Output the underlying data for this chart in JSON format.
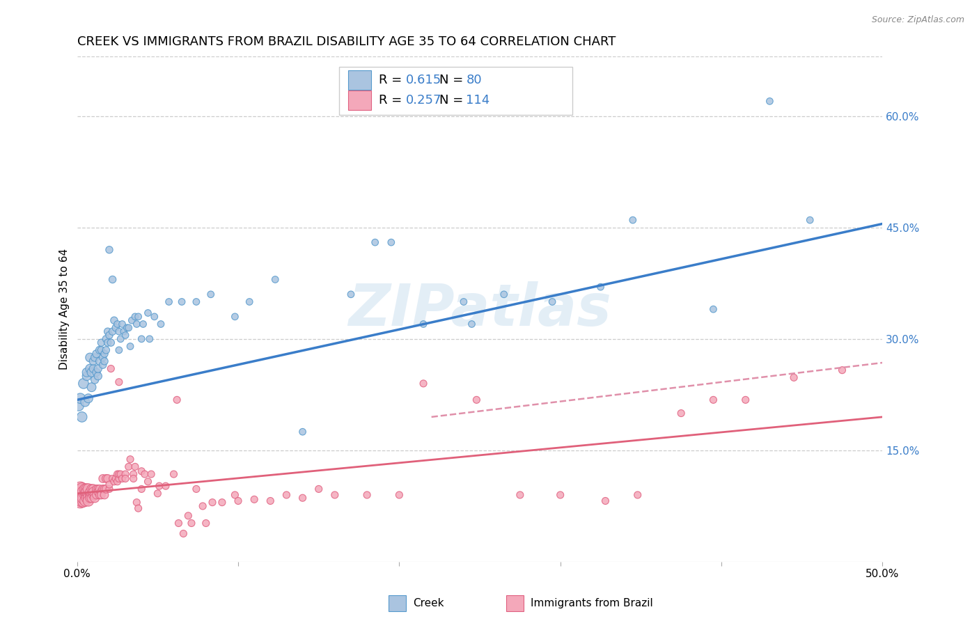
{
  "title": "CREEK VS IMMIGRANTS FROM BRAZIL DISABILITY AGE 35 TO 64 CORRELATION CHART",
  "source": "Source: ZipAtlas.com",
  "ylabel": "Disability Age 35 to 64",
  "xlim": [
    0.0,
    0.5
  ],
  "ylim": [
    0.0,
    0.68
  ],
  "xtick_labels": [
    "0.0%",
    "50.0%"
  ],
  "xtick_values": [
    0.0,
    0.5
  ],
  "ytick_labels": [
    "15.0%",
    "30.0%",
    "45.0%",
    "60.0%"
  ],
  "ytick_values": [
    0.15,
    0.3,
    0.45,
    0.6
  ],
  "legend_r1_val": "0.615",
  "legend_n1_val": "80",
  "legend_r2_val": "0.257",
  "legend_n2_val": "114",
  "creek_color": "#aac4e0",
  "brazil_color": "#f4a8ba",
  "creek_edge_color": "#5599cc",
  "brazil_edge_color": "#e06080",
  "creek_line_color": "#3a7dc9",
  "brazil_line_color": "#e0607a",
  "brazil_dashed_color": "#e090aa",
  "accent_color": "#3a7dc9",
  "watermark": "ZIPatlas",
  "watermark_color": "#cce0f0",
  "creek_scatter": [
    [
      0.001,
      0.21
    ],
    [
      0.002,
      0.22
    ],
    [
      0.003,
      0.195
    ],
    [
      0.004,
      0.24
    ],
    [
      0.005,
      0.215
    ],
    [
      0.006,
      0.25
    ],
    [
      0.006,
      0.255
    ],
    [
      0.007,
      0.22
    ],
    [
      0.008,
      0.275
    ],
    [
      0.008,
      0.26
    ],
    [
      0.009,
      0.235
    ],
    [
      0.009,
      0.255
    ],
    [
      0.01,
      0.27
    ],
    [
      0.01,
      0.26
    ],
    [
      0.011,
      0.245
    ],
    [
      0.011,
      0.275
    ],
    [
      0.012,
      0.28
    ],
    [
      0.012,
      0.255
    ],
    [
      0.013,
      0.25
    ],
    [
      0.013,
      0.26
    ],
    [
      0.014,
      0.27
    ],
    [
      0.014,
      0.285
    ],
    [
      0.015,
      0.295
    ],
    [
      0.015,
      0.285
    ],
    [
      0.016,
      0.275
    ],
    [
      0.016,
      0.265
    ],
    [
      0.017,
      0.28
    ],
    [
      0.017,
      0.27
    ],
    [
      0.018,
      0.3
    ],
    [
      0.018,
      0.285
    ],
    [
      0.019,
      0.295
    ],
    [
      0.019,
      0.31
    ],
    [
      0.02,
      0.305
    ],
    [
      0.02,
      0.42
    ],
    [
      0.021,
      0.295
    ],
    [
      0.022,
      0.38
    ],
    [
      0.022,
      0.31
    ],
    [
      0.023,
      0.325
    ],
    [
      0.024,
      0.315
    ],
    [
      0.025,
      0.32
    ],
    [
      0.026,
      0.31
    ],
    [
      0.026,
      0.285
    ],
    [
      0.027,
      0.3
    ],
    [
      0.028,
      0.32
    ],
    [
      0.029,
      0.31
    ],
    [
      0.03,
      0.305
    ],
    [
      0.031,
      0.315
    ],
    [
      0.032,
      0.315
    ],
    [
      0.033,
      0.29
    ],
    [
      0.034,
      0.325
    ],
    [
      0.036,
      0.33
    ],
    [
      0.037,
      0.32
    ],
    [
      0.038,
      0.33
    ],
    [
      0.04,
      0.3
    ],
    [
      0.041,
      0.32
    ],
    [
      0.044,
      0.335
    ],
    [
      0.045,
      0.3
    ],
    [
      0.048,
      0.33
    ],
    [
      0.052,
      0.32
    ],
    [
      0.057,
      0.35
    ],
    [
      0.065,
      0.35
    ],
    [
      0.074,
      0.35
    ],
    [
      0.083,
      0.36
    ],
    [
      0.098,
      0.33
    ],
    [
      0.107,
      0.35
    ],
    [
      0.123,
      0.38
    ],
    [
      0.14,
      0.175
    ],
    [
      0.17,
      0.36
    ],
    [
      0.185,
      0.43
    ],
    [
      0.195,
      0.43
    ],
    [
      0.215,
      0.32
    ],
    [
      0.24,
      0.35
    ],
    [
      0.245,
      0.32
    ],
    [
      0.265,
      0.36
    ],
    [
      0.295,
      0.35
    ],
    [
      0.325,
      0.37
    ],
    [
      0.345,
      0.46
    ],
    [
      0.395,
      0.34
    ],
    [
      0.43,
      0.62
    ],
    [
      0.455,
      0.46
    ]
  ],
  "brazil_scatter": [
    [
      0.001,
      0.085
    ],
    [
      0.001,
      0.09
    ],
    [
      0.001,
      0.088
    ],
    [
      0.002,
      0.092
    ],
    [
      0.002,
      0.082
    ],
    [
      0.002,
      0.098
    ],
    [
      0.002,
      0.094
    ],
    [
      0.003,
      0.09
    ],
    [
      0.003,
      0.086
    ],
    [
      0.003,
      0.098
    ],
    [
      0.003,
      0.082
    ],
    [
      0.004,
      0.09
    ],
    [
      0.004,
      0.094
    ],
    [
      0.004,
      0.082
    ],
    [
      0.004,
      0.086
    ],
    [
      0.005,
      0.09
    ],
    [
      0.005,
      0.094
    ],
    [
      0.005,
      0.082
    ],
    [
      0.005,
      0.098
    ],
    [
      0.006,
      0.09
    ],
    [
      0.006,
      0.086
    ],
    [
      0.006,
      0.098
    ],
    [
      0.006,
      0.094
    ],
    [
      0.007,
      0.09
    ],
    [
      0.007,
      0.086
    ],
    [
      0.007,
      0.098
    ],
    [
      0.007,
      0.082
    ],
    [
      0.008,
      0.09
    ],
    [
      0.008,
      0.094
    ],
    [
      0.008,
      0.086
    ],
    [
      0.009,
      0.09
    ],
    [
      0.009,
      0.098
    ],
    [
      0.009,
      0.086
    ],
    [
      0.01,
      0.09
    ],
    [
      0.01,
      0.098
    ],
    [
      0.01,
      0.094
    ],
    [
      0.011,
      0.09
    ],
    [
      0.011,
      0.086
    ],
    [
      0.012,
      0.098
    ],
    [
      0.012,
      0.09
    ],
    [
      0.013,
      0.098
    ],
    [
      0.013,
      0.094
    ],
    [
      0.014,
      0.09
    ],
    [
      0.014,
      0.098
    ],
    [
      0.015,
      0.094
    ],
    [
      0.015,
      0.09
    ],
    [
      0.016,
      0.098
    ],
    [
      0.016,
      0.112
    ],
    [
      0.017,
      0.098
    ],
    [
      0.017,
      0.09
    ],
    [
      0.018,
      0.112
    ],
    [
      0.018,
      0.098
    ],
    [
      0.019,
      0.112
    ],
    [
      0.02,
      0.098
    ],
    [
      0.02,
      0.104
    ],
    [
      0.021,
      0.26
    ],
    [
      0.022,
      0.112
    ],
    [
      0.023,
      0.108
    ],
    [
      0.024,
      0.112
    ],
    [
      0.025,
      0.108
    ],
    [
      0.025,
      0.118
    ],
    [
      0.026,
      0.112
    ],
    [
      0.026,
      0.118
    ],
    [
      0.026,
      0.242
    ],
    [
      0.027,
      0.118
    ],
    [
      0.028,
      0.112
    ],
    [
      0.03,
      0.118
    ],
    [
      0.03,
      0.112
    ],
    [
      0.032,
      0.128
    ],
    [
      0.033,
      0.138
    ],
    [
      0.035,
      0.118
    ],
    [
      0.035,
      0.112
    ],
    [
      0.036,
      0.128
    ],
    [
      0.037,
      0.08
    ],
    [
      0.038,
      0.072
    ],
    [
      0.04,
      0.122
    ],
    [
      0.04,
      0.098
    ],
    [
      0.042,
      0.118
    ],
    [
      0.044,
      0.108
    ],
    [
      0.046,
      0.118
    ],
    [
      0.05,
      0.092
    ],
    [
      0.051,
      0.102
    ],
    [
      0.055,
      0.102
    ],
    [
      0.06,
      0.118
    ],
    [
      0.062,
      0.218
    ],
    [
      0.063,
      0.052
    ],
    [
      0.066,
      0.038
    ],
    [
      0.069,
      0.062
    ],
    [
      0.071,
      0.052
    ],
    [
      0.074,
      0.098
    ],
    [
      0.078,
      0.075
    ],
    [
      0.08,
      0.052
    ],
    [
      0.084,
      0.08
    ],
    [
      0.09,
      0.08
    ],
    [
      0.098,
      0.09
    ],
    [
      0.1,
      0.082
    ],
    [
      0.11,
      0.084
    ],
    [
      0.12,
      0.082
    ],
    [
      0.13,
      0.09
    ],
    [
      0.14,
      0.086
    ],
    [
      0.15,
      0.098
    ],
    [
      0.16,
      0.09
    ],
    [
      0.18,
      0.09
    ],
    [
      0.2,
      0.09
    ],
    [
      0.215,
      0.24
    ],
    [
      0.248,
      0.218
    ],
    [
      0.275,
      0.09
    ],
    [
      0.3,
      0.09
    ],
    [
      0.328,
      0.082
    ],
    [
      0.348,
      0.09
    ],
    [
      0.375,
      0.2
    ],
    [
      0.395,
      0.218
    ],
    [
      0.415,
      0.218
    ],
    [
      0.445,
      0.248
    ],
    [
      0.475,
      0.258
    ]
  ],
  "creek_trendline": [
    [
      0.0,
      0.218
    ],
    [
      0.5,
      0.455
    ]
  ],
  "brazil_trendline": [
    [
      0.0,
      0.092
    ],
    [
      0.5,
      0.195
    ]
  ],
  "brazil_dashed_trendline": [
    [
      0.22,
      0.195
    ],
    [
      0.5,
      0.268
    ]
  ],
  "title_fontsize": 13,
  "axis_label_fontsize": 11,
  "tick_fontsize": 11,
  "legend_fontsize": 13
}
